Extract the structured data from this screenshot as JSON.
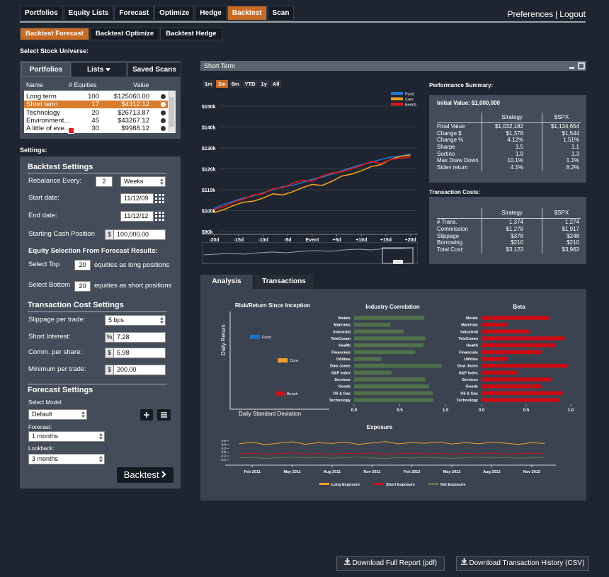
{
  "nav": {
    "tabs": [
      "Portfolios",
      "Equity Lists",
      "Forecast",
      "Optimize",
      "Hedge",
      "Backtest",
      "Scan"
    ],
    "active": 5,
    "links": [
      "Preferences",
      "Logout"
    ],
    "separator": "|"
  },
  "subtabs": {
    "items": [
      "Backtest Forecast",
      "Backtest Optimize",
      "Backtest Hedge"
    ],
    "active": 0
  },
  "universe": {
    "label": "Select Stock Universe:",
    "tabs": [
      "Portfolios",
      "Lists",
      "Saved Scans"
    ],
    "columns": [
      "Name",
      "# Equities",
      "Value"
    ],
    "rows": [
      [
        "Long term",
        "100",
        "$125060.00"
      ],
      [
        "Short term",
        "17",
        "$4312.12"
      ],
      [
        "Technology",
        "20",
        "$26713.87"
      ],
      [
        "Environment...",
        "45",
        "$43267.12"
      ],
      [
        "A little of eve...",
        "30",
        "$9988.12"
      ]
    ],
    "selected": 1
  },
  "settings": {
    "label": "Settings:",
    "backtest": {
      "title": "Backtest Settings",
      "rebalance_label": "Rebalance Every:",
      "rebalance_value": "2",
      "rebalance_unit": "Weeks",
      "start_label": "Start date:",
      "start_value": "11/12/09",
      "end_label": "End date:",
      "end_value": "11/12/12",
      "cash_label": "Starting Cash Position",
      "cash_prefix": "$",
      "cash_value": "100,000.00"
    },
    "selection": {
      "title": "Equity Selection From Forecast Results:",
      "top_label": "Select Top",
      "top_value": "20",
      "top_suffix": "equities as long positions",
      "bottom_label": "Select Bottom",
      "bottom_value": "20",
      "bottom_suffix": "equities as short positions"
    },
    "costs": {
      "title": "Transaction Cost Settings",
      "slippage_label": "Slippage per trade:",
      "slippage_value": "5 bps",
      "short_label": "Short Interest:",
      "short_prefix": "%",
      "short_value": "7.28",
      "comm_label": "Comm. per share:",
      "comm_prefix": "$",
      "comm_value": "5.98",
      "min_label": "Minimum per trade:",
      "min_prefix": "$",
      "min_value": "200.00"
    },
    "forecast": {
      "title": "Forecast Settings",
      "model_label": "Select Model:",
      "model_value": "Default",
      "forecast_label": "Forecast:",
      "forecast_value": "1 months",
      "lookback_label": "Lookback:",
      "lookback_value": "3 months",
      "button": "Backtest"
    }
  },
  "performance": {
    "title": "Performance Summary:",
    "initial": "Initial Value: $1,000,000",
    "columns": [
      "Strategy",
      "$SPX"
    ],
    "rows": [
      [
        "Final Value",
        "$1,032,182",
        "$1,134,654"
      ],
      [
        "Change $",
        "$1,378",
        "$1,544"
      ],
      [
        "Change %",
        "4.12%",
        "1.51%"
      ],
      [
        "Sharpe",
        "1.5",
        "1.1"
      ],
      [
        "Sortino",
        "1.9",
        "1.3"
      ],
      [
        "Max Draw Down",
        "10.1%",
        "1.1%"
      ],
      [
        "Stdev return",
        "4.1%",
        "8.2%"
      ]
    ]
  },
  "costs": {
    "title": "Transaction Costs:",
    "columns": [
      "Strategy",
      "$SPX"
    ],
    "rows": [
      [
        "# Trans.",
        "1,374",
        "1,274"
      ],
      [
        "Commission",
        "$1,278",
        "$1,917"
      ],
      [
        "Slippage",
        "$378",
        "$248"
      ],
      [
        "Borrowing",
        "$210",
        "$210"
      ],
      [
        "Total Cost:",
        "$3,123",
        "$3,963"
      ]
    ]
  },
  "analysis_tabs": {
    "items": [
      "Analysis",
      "Transactions"
    ],
    "active": 0
  },
  "downloads": [
    "Download Full Report (pdf)",
    "Download Transaction History (CSV)"
  ],
  "chart_data": [
    {
      "type": "line",
      "title": "Short Term",
      "ranges": [
        "1m",
        "3m",
        "6m",
        "YTD",
        "1y",
        "All"
      ],
      "active_range": 1,
      "x": [
        -20,
        -18,
        -16,
        -14,
        -12,
        -10,
        -8,
        -6,
        -4,
        -2,
        0,
        2,
        4,
        6,
        8,
        10,
        12,
        14,
        16,
        18,
        20
      ],
      "xlim": [
        -22.5,
        21.5
      ],
      "xticks": [
        {
          "value": -20,
          "label": "-20d"
        },
        {
          "value": -15,
          "label": "-15d"
        },
        {
          "value": -10,
          "label": "-10d"
        },
        {
          "value": -5,
          "label": "-5d"
        },
        {
          "value": 0,
          "label": "Event"
        },
        {
          "value": 5,
          "label": "+5d"
        },
        {
          "value": 10,
          "label": "+10d"
        },
        {
          "value": 15,
          "label": "+15d"
        },
        {
          "value": 20,
          "label": "+20d"
        }
      ],
      "ylim": [
        90000,
        155000
      ],
      "yticks": [
        {
          "value": 90000,
          "label": "$90k"
        },
        {
          "value": 100000,
          "label": "$100k"
        },
        {
          "value": 110000,
          "label": "$110k"
        },
        {
          "value": 120000,
          "label": "$120k"
        },
        {
          "value": 130000,
          "label": "$130k"
        },
        {
          "value": 140000,
          "label": "$140k"
        },
        {
          "value": 150000,
          "label": "$150k"
        }
      ],
      "grid": true,
      "series": [
        {
          "name": "Fund",
          "color": "#2a72d0",
          "values": [
            101000,
            103000,
            104500,
            106000,
            107000,
            108500,
            110000,
            111500,
            112000,
            113500,
            115000,
            116000,
            117500,
            119000,
            120500,
            122000,
            123000,
            124500,
            125500,
            126000,
            127000
          ]
        },
        {
          "name": "Core",
          "color": "#f0a020",
          "values": [
            99000,
            100500,
            102500,
            104000,
            104500,
            106000,
            108000,
            107500,
            109000,
            111000,
            112500,
            112000,
            114000,
            116500,
            117500,
            119000,
            121000,
            122000,
            124500,
            126000,
            126500
          ]
        },
        {
          "name": "Bench",
          "color": "#e01515",
          "values": [
            100500,
            102000,
            104000,
            105500,
            107500,
            108000,
            110500,
            111000,
            113000,
            114500,
            114000,
            116500,
            118000,
            118500,
            120000,
            121500,
            123500,
            122500,
            124500,
            125000,
            125500
          ]
        }
      ]
    },
    {
      "type": "scatter",
      "title": "Risk/Return Since Inception",
      "x_label": "Daily Standard Deviation",
      "y_label": "Daily Return",
      "xlim": [
        0,
        1
      ],
      "ylim": [
        0,
        1
      ],
      "series": [
        {
          "name": "Fund",
          "color": "#1e6fc8",
          "x": [
            0.25
          ],
          "values": [
            0.74
          ]
        },
        {
          "name": "Core",
          "color": "#f0a030",
          "x": [
            0.53
          ],
          "values": [
            0.5
          ]
        },
        {
          "name": "Bench",
          "color": "#cc1020",
          "x": [
            0.5
          ],
          "values": [
            0.16
          ]
        }
      ]
    },
    {
      "type": "hbar",
      "title": "Industry Correlation",
      "color": "#51714a",
      "categories": [
        "Metals",
        "Materials",
        "Industrial",
        "TeleComm",
        "Health",
        "Financials",
        "Utilities",
        "Dow Jones",
        "S&P Index",
        "Services",
        "Goods",
        "Oil & Gas",
        "Technology"
      ],
      "values": [
        0.77,
        0.4,
        0.54,
        0.78,
        0.76,
        0.67,
        0.3,
        0.96,
        0.41,
        0.78,
        0.82,
        0.86,
        0.87
      ],
      "xlim": [
        0,
        1
      ],
      "xticks": [
        {
          "value": 0,
          "label": "0.0"
        },
        0.5,
        {
          "value": 1,
          "label": "1.0"
        }
      ]
    },
    {
      "type": "hbar",
      "title": "Beta",
      "color": "#cc0a14",
      "categories": [
        "Metals",
        "Materials",
        "Industrial",
        "TeleComm",
        "Health",
        "Financials",
        "Utilities",
        "Dow Jones",
        "S&P Index",
        "Services",
        "Goods",
        "Oil & Gas",
        "Technology"
      ],
      "values": [
        0.76,
        0.29,
        0.54,
        0.93,
        0.83,
        0.67,
        0.29,
        0.97,
        0.4,
        0.78,
        0.67,
        0.91,
        0.87
      ],
      "xlim": [
        0,
        1
      ],
      "xticks": [
        {
          "value": 0,
          "label": "0.0"
        },
        0.5,
        {
          "value": 1,
          "label": "1.0"
        }
      ]
    },
    {
      "type": "line",
      "title": "Exposure",
      "categories": [
        null,
        "Feb 2011",
        null,
        null,
        "May 2011",
        null,
        null,
        "Aug 2011",
        null,
        null,
        "Nov 2011",
        null,
        null,
        "Feb 2012",
        null,
        null,
        "May 2012",
        null,
        null,
        "Aug 2012",
        null,
        null,
        "Nov 2012",
        null
      ],
      "ylim": [
        -0.5,
        0.7
      ],
      "yticks": [
        -0.4,
        -0.2,
        {
          "value": 0,
          "label": "0.0"
        },
        0.2,
        0.4,
        0.6
      ],
      "series": [
        {
          "name": "Long Exposure",
          "color": "#f0a030",
          "values": [
            0.45,
            0.52,
            0.4,
            0.48,
            0.55,
            0.42,
            0.5,
            0.46,
            0.53,
            0.41,
            0.49,
            0.56,
            0.44,
            0.51,
            0.47,
            0.54,
            0.43,
            0.5,
            0.45,
            0.52,
            0.48,
            0.41,
            0.5,
            0.46
          ]
        },
        {
          "name": "Short Exposure",
          "color": "#cc1122",
          "values": [
            -0.1,
            -0.05,
            -0.12,
            -0.08,
            -0.03,
            -0.11,
            -0.07,
            -0.13,
            -0.06,
            -0.09,
            -0.04,
            -0.12,
            -0.08,
            -0.05,
            -0.1,
            -0.07,
            -0.12,
            -0.06,
            -0.09,
            -0.04,
            -0.11,
            -0.08,
            -0.05,
            -0.1
          ]
        },
        {
          "name": "Net Exposure",
          "color": "#5a7a50",
          "values": [
            -0.3,
            -0.28,
            -0.33,
            -0.29,
            -0.26,
            -0.31,
            -0.27,
            -0.32,
            -0.29,
            -0.25,
            -0.3,
            -0.34,
            -0.28,
            -0.31,
            -0.27,
            -0.3,
            -0.33,
            -0.29,
            -0.26,
            -0.31,
            -0.28,
            -0.32,
            -0.3,
            -0.27
          ]
        }
      ]
    }
  ]
}
